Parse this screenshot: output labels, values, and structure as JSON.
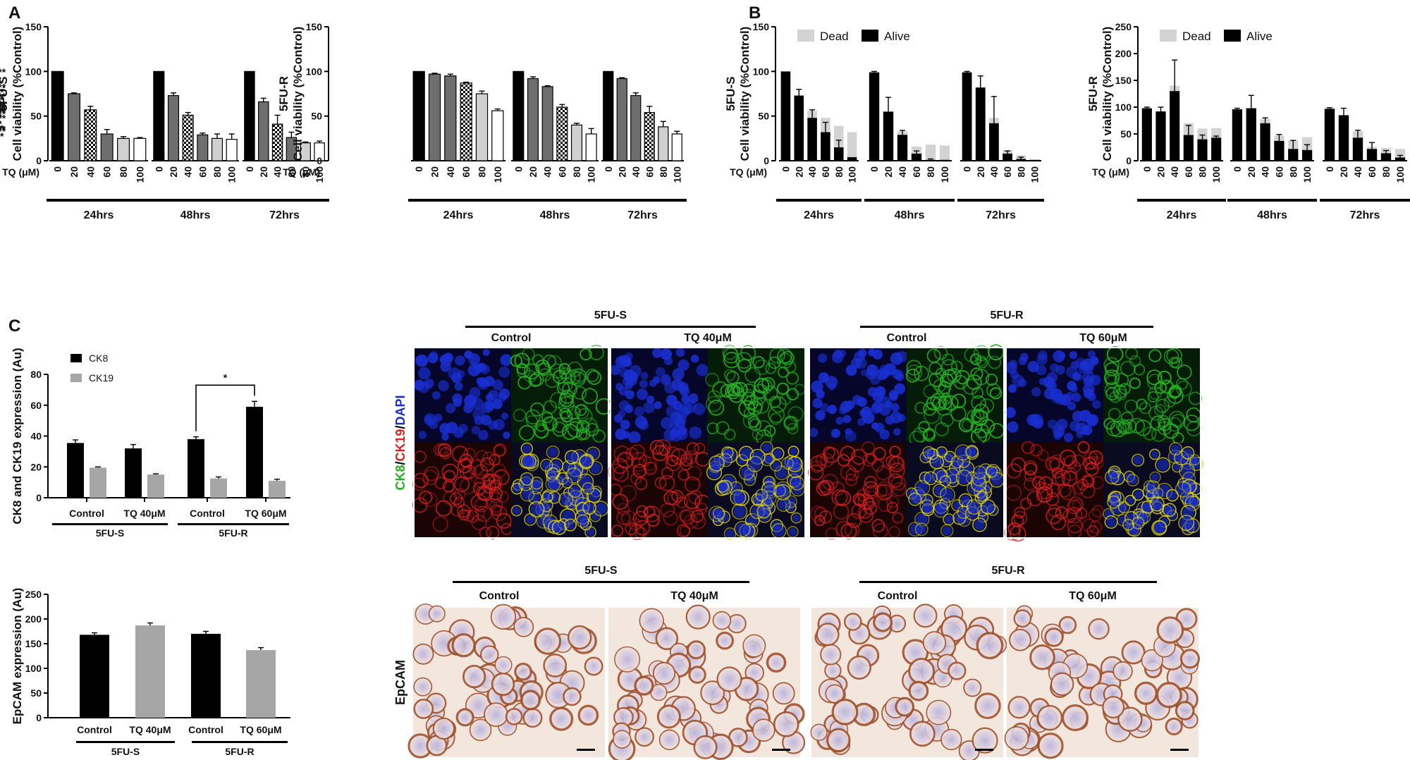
{
  "panel_labels": {
    "a": "A",
    "b": "B",
    "c": "C"
  },
  "colors": {
    "black": "#000000",
    "dark_gray": "#6e6e6e",
    "light_gray": "#d0d0d0",
    "white": "#ffffff",
    "dead": "#d3d3d3",
    "ck19": "#a6a6a6",
    "dapi": "#1a2fd0",
    "ck8": "#27b024",
    "ck19_stain": "#e02020",
    "ihc_brown": "#a0522d"
  },
  "chart_data": [
    {
      "id": "A1",
      "type": "bar",
      "panel": "A",
      "ylabel": "Cell viability (%Control)",
      "row_label": "5FU-S",
      "ylim": [
        0,
        150
      ],
      "yticks": [
        0,
        50,
        100,
        150
      ],
      "xlabel": "TQ (μM)",
      "categories": [
        "0",
        "20",
        "40",
        "60",
        "80",
        "100"
      ],
      "groups": [
        {
          "label": "24hrs",
          "values": [
            100,
            75,
            57,
            30,
            25,
            25
          ],
          "errors": [
            0,
            1,
            4,
            5,
            2,
            1
          ]
        },
        {
          "label": "48hrs",
          "values": [
            100,
            73,
            51,
            29,
            25,
            24
          ],
          "errors": [
            0,
            3,
            3,
            2,
            5,
            6
          ]
        },
        {
          "label": "72hrs",
          "values": [
            100,
            66,
            41,
            26,
            20,
            20
          ],
          "errors": [
            0,
            4,
            10,
            6,
            1,
            2
          ]
        }
      ],
      "bar_styles": [
        "black",
        "dark_gray",
        "checker",
        "dark_gray",
        "light_gray",
        "white"
      ],
      "annotations": [
        {
          "group": 0,
          "bar": 2,
          "text": "**"
        },
        {
          "group": 0,
          "bars": [
            3,
            5
          ],
          "text": "***",
          "line": true
        },
        {
          "group": 1,
          "bar": 2,
          "text": "**"
        },
        {
          "group": 1,
          "bars": [
            3,
            5
          ],
          "text": "***",
          "line": true
        },
        {
          "group": 2,
          "bar": 1,
          "text": "**"
        },
        {
          "group": 2,
          "bars": [
            2,
            5
          ],
          "text": "***",
          "line": true
        }
      ]
    },
    {
      "id": "A2",
      "type": "bar",
      "panel": "A",
      "ylabel": "Cell viability (%Control)",
      "row_label": "5FU-R",
      "ylim": [
        0,
        150
      ],
      "yticks": [
        0,
        50,
        100,
        150
      ],
      "xlabel": "TQ (μM)",
      "categories": [
        "0",
        "20",
        "40",
        "60",
        "80",
        "100"
      ],
      "groups": [
        {
          "label": "24hrs",
          "values": [
            100,
            97,
            95,
            87,
            75,
            56
          ],
          "errors": [
            0,
            1,
            2,
            1,
            3,
            2
          ]
        },
        {
          "label": "48hrs",
          "values": [
            100,
            92,
            83,
            60,
            40,
            30
          ],
          "errors": [
            0,
            2,
            1,
            3,
            2,
            6
          ]
        },
        {
          "label": "72hrs",
          "values": [
            100,
            92,
            73,
            54,
            38,
            30
          ],
          "errors": [
            0,
            1,
            3,
            7,
            6,
            3
          ]
        }
      ],
      "bar_styles": [
        "black",
        "dark_gray",
        "dark_gray",
        "checker",
        "light_gray",
        "white"
      ],
      "annotations": [
        {
          "group": 0,
          "bars": [
            4,
            5
          ],
          "text": "***",
          "line": true
        },
        {
          "group": 1,
          "bar": 3,
          "text": "**"
        },
        {
          "group": 1,
          "bars": [
            4,
            5
          ],
          "text": "***",
          "line": true
        },
        {
          "group": 2,
          "bars": [
            3,
            5
          ],
          "text": "***",
          "line": true
        }
      ]
    },
    {
      "id": "B1",
      "type": "bar",
      "panel": "B",
      "stacked": true,
      "ylabel": "Cell viability (%Control)",
      "row_label": "5FU-S",
      "ylim": [
        0,
        150
      ],
      "yticks": [
        0,
        50,
        100,
        150
      ],
      "xlabel": "TQ (μM)",
      "categories": [
        "0",
        "20",
        "40",
        "60",
        "80",
        "100"
      ],
      "legend": [
        "Dead",
        "Alive"
      ],
      "groups": [
        {
          "label": "24hrs",
          "alive": [
            100,
            73,
            48,
            32,
            15,
            4
          ],
          "alive_err": [
            0,
            7,
            9,
            11,
            8,
            0
          ],
          "dead": [
            0,
            0,
            8,
            16,
            24,
            28
          ]
        },
        {
          "label": "48hrs",
          "alive": [
            99,
            55,
            29,
            8,
            1,
            1
          ],
          "alive_err": [
            1,
            16,
            5,
            3,
            1,
            0
          ],
          "dead": [
            0,
            0,
            4,
            8,
            17,
            16
          ]
        },
        {
          "label": "72hrs",
          "alive": [
            99,
            82,
            42,
            8,
            2,
            1
          ],
          "alive_err": [
            1,
            13,
            30,
            3,
            2,
            0
          ],
          "dead": [
            0,
            0,
            6,
            4,
            4,
            0
          ]
        }
      ],
      "annotations": [
        {
          "group": 0,
          "bar": 1,
          "text": "*"
        },
        {
          "group": 0,
          "bar": 2,
          "text": "*"
        },
        {
          "group": 0,
          "bar": 3,
          "text": "**"
        },
        {
          "group": 0,
          "bars": [
            4,
            5
          ],
          "text": "***",
          "line": true
        },
        {
          "group": 1,
          "bars": [
            2,
            5
          ],
          "text": "***",
          "line": true
        },
        {
          "group": 2,
          "bars": [
            3,
            5
          ],
          "text": "***",
          "line": true
        }
      ]
    },
    {
      "id": "B2",
      "type": "bar",
      "panel": "B",
      "stacked": true,
      "ylabel": "Cell viability (%Control)",
      "row_label": "5FU-R",
      "ylim": [
        0,
        250
      ],
      "yticks": [
        0,
        50,
        100,
        150,
        200,
        250
      ],
      "xlabel": "TQ (μM)",
      "categories": [
        "0",
        "20",
        "40",
        "60",
        "80",
        "100"
      ],
      "legend": [
        "Dead",
        "Alive"
      ],
      "groups": [
        {
          "label": "24hrs",
          "alive": [
            98,
            92,
            130,
            48,
            40,
            43
          ],
          "alive_err": [
            2,
            8,
            58,
            18,
            8,
            3
          ],
          "dead": [
            0,
            0,
            10,
            22,
            20,
            18
          ]
        },
        {
          "label": "48hrs",
          "alive": [
            96,
            98,
            70,
            37,
            22,
            20
          ],
          "alive_err": [
            2,
            24,
            10,
            12,
            16,
            10
          ],
          "dead": [
            0,
            0,
            8,
            10,
            16,
            24
          ]
        },
        {
          "label": "72hrs",
          "alive": [
            97,
            85,
            43,
            22,
            14,
            6
          ],
          "alive_err": [
            2,
            13,
            14,
            12,
            5,
            4
          ],
          "dead": [
            0,
            0,
            12,
            4,
            10,
            16
          ]
        }
      ],
      "annotations": [
        {
          "group": 0,
          "bar": 3,
          "text": "*"
        },
        {
          "group": 0,
          "bars": [
            4,
            5
          ],
          "text": "***",
          "line": true
        },
        {
          "group": 1,
          "bar": 2,
          "text": "*"
        },
        {
          "group": 1,
          "bar": 3,
          "text": "**"
        },
        {
          "group": 1,
          "bars": [
            4,
            5
          ],
          "text": "***",
          "line": true
        },
        {
          "group": 2,
          "bar": 2,
          "text": "*"
        },
        {
          "group": 2,
          "bar": 3,
          "text": "**"
        },
        {
          "group": 2,
          "bars": [
            4,
            5
          ],
          "text": "***",
          "line": true
        }
      ]
    },
    {
      "id": "C1",
      "type": "bar",
      "panel": "C",
      "ylabel": "CK8 and CK19 expression (Au)",
      "ylim": [
        0,
        80
      ],
      "yticks": [
        0,
        20,
        40,
        60,
        80
      ],
      "legend": [
        "CK8",
        "CK19"
      ],
      "categories": [
        "Control",
        "TQ 40μM",
        "Control",
        "TQ 60μM"
      ],
      "cell_lines": [
        "5FU-S",
        "5FU-R"
      ],
      "series": [
        {
          "name": "CK8",
          "values": [
            35.5,
            32,
            38,
            59
          ],
          "errors": [
            2,
            2.5,
            1.5,
            3.5
          ]
        },
        {
          "name": "CK19",
          "values": [
            19.5,
            15,
            12.5,
            11
          ],
          "errors": [
            0.5,
            0.5,
            1,
            1
          ]
        }
      ],
      "annotations": [
        {
          "text": "*",
          "from": 2,
          "to": 3
        }
      ]
    },
    {
      "id": "C2",
      "type": "bar",
      "panel": "C",
      "ylabel": "EpCAM expression (Au)",
      "ylim": [
        0,
        250
      ],
      "yticks": [
        0,
        50,
        100,
        150,
        200,
        250
      ],
      "categories": [
        "Control",
        "TQ 40μM",
        "Control",
        "TQ 60μM"
      ],
      "cell_lines": [
        "5FU-S",
        "5FU-R"
      ],
      "values": [
        168,
        187,
        170,
        137
      ],
      "errors": [
        4,
        5,
        5,
        5
      ],
      "bar_styles": [
        "black",
        "ck19",
        "black",
        "ck19"
      ]
    }
  ],
  "micrographs": {
    "if_headers": [
      {
        "cell_line": "5FU-S",
        "conditions": [
          "Control",
          "TQ 40μM"
        ]
      },
      {
        "cell_line": "5FU-R",
        "conditions": [
          "Control",
          "TQ 60μM"
        ]
      }
    ],
    "if_label_parts": [
      "CK8",
      "/",
      "CK19",
      "/",
      "DAPI"
    ],
    "ihc_headers": [
      {
        "cell_line": "5FU-S",
        "conditions": [
          "Control",
          "TQ 40μM"
        ]
      },
      {
        "cell_line": "5FU-R",
        "conditions": [
          "Control",
          "TQ 60μM"
        ]
      }
    ],
    "ihc_label": "EpCAM"
  }
}
